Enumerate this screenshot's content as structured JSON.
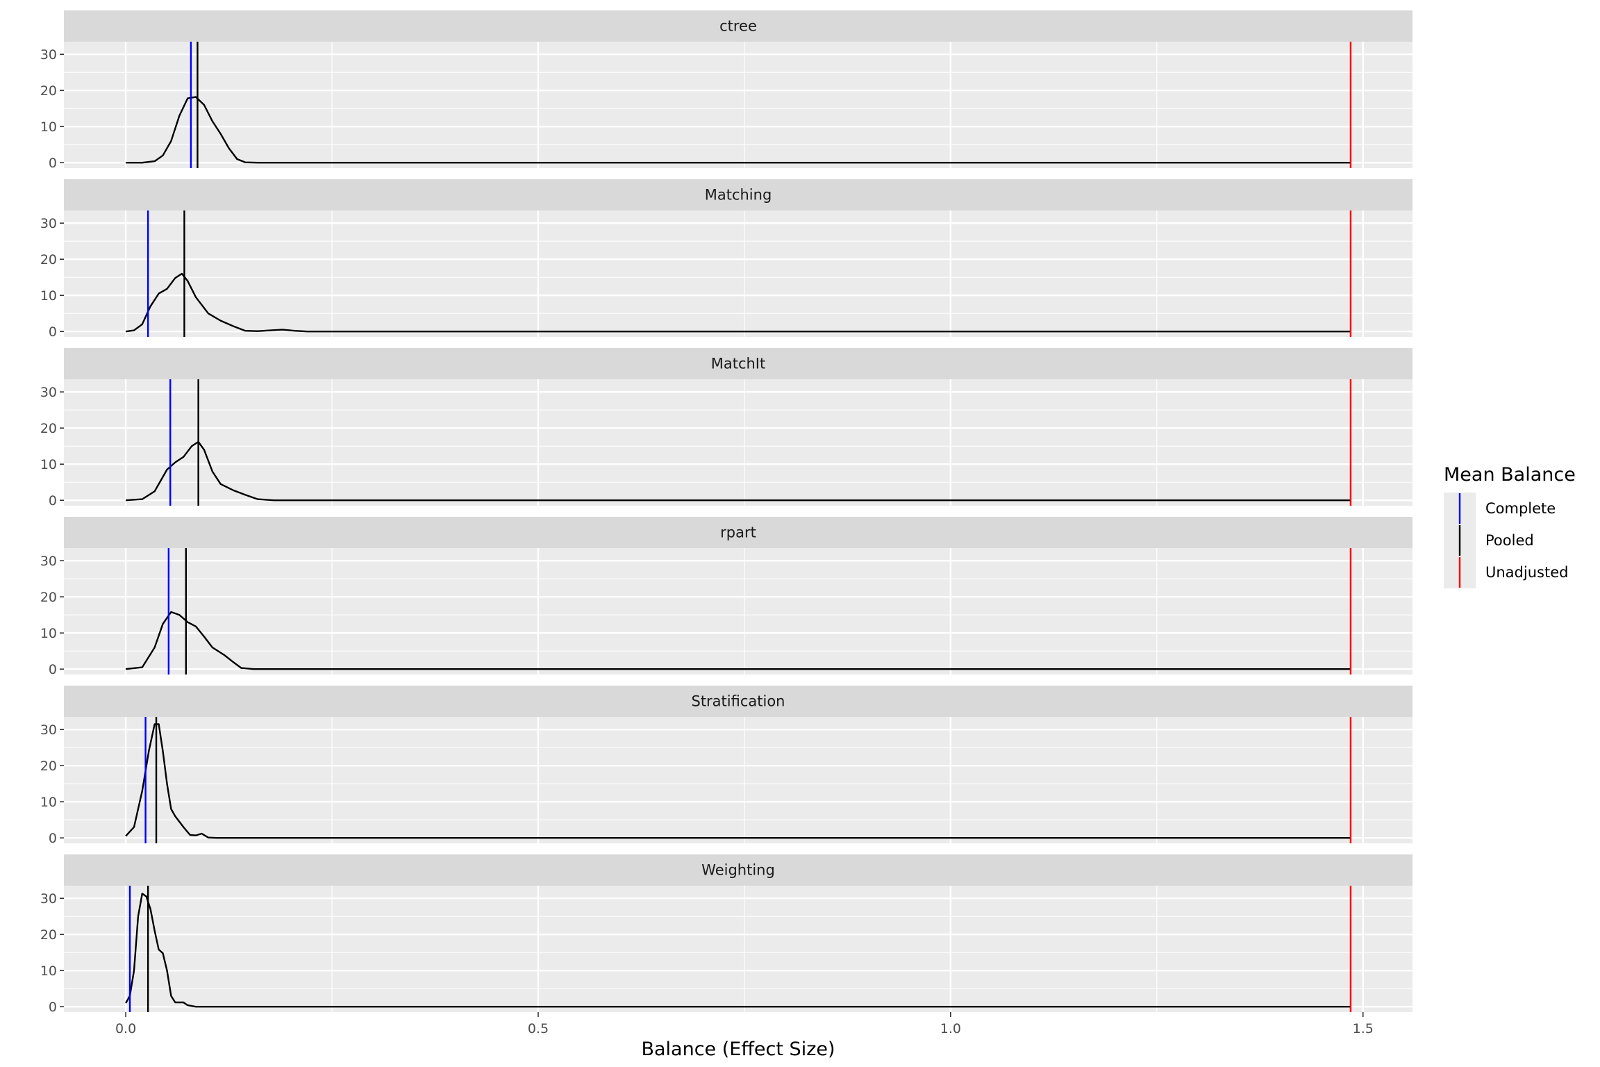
{
  "chart_data": {
    "type": "line",
    "subtype": "density-facets",
    "xlabel": "Balance (Effect Size)",
    "ylabel": "",
    "xlim": [
      -0.075,
      1.56
    ],
    "ylim": [
      -1.5,
      33.5
    ],
    "x_ticks": [
      0.0,
      0.5,
      1.0,
      1.5
    ],
    "x_tick_labels": [
      "0.0",
      "0.5",
      "1.0",
      "1.5"
    ],
    "y_ticks": [
      0,
      10,
      20,
      30
    ],
    "y_tick_labels": [
      "0",
      "10",
      "20",
      "30"
    ],
    "grid": true,
    "legend": {
      "title": "Mean Balance",
      "placement": "right",
      "entries": [
        {
          "label": "Complete",
          "color": "#0000ff"
        },
        {
          "label": "Pooled",
          "color": "#000000"
        },
        {
          "label": "Unadjusted",
          "color": "#ff0000"
        }
      ]
    },
    "colors": {
      "panel_bg": "#ebebeb",
      "strip_bg": "#d9d9d9",
      "grid": "#ffffff",
      "density": "#000000"
    },
    "facets": [
      {
        "name": "ctree",
        "complete": 0.079,
        "pooled": 0.087,
        "unadjusted": 1.485,
        "density": [
          [
            0.0,
            0
          ],
          [
            0.02,
            0
          ],
          [
            0.035,
            0.4
          ],
          [
            0.045,
            2
          ],
          [
            0.055,
            6
          ],
          [
            0.065,
            13
          ],
          [
            0.075,
            17.8
          ],
          [
            0.085,
            18.2
          ],
          [
            0.095,
            16
          ],
          [
            0.105,
            11.5
          ],
          [
            0.115,
            8
          ],
          [
            0.125,
            4
          ],
          [
            0.135,
            1
          ],
          [
            0.145,
            0.1
          ],
          [
            0.16,
            0
          ],
          [
            1.485,
            0
          ]
        ]
      },
      {
        "name": "Matching",
        "complete": 0.027,
        "pooled": 0.071,
        "unadjusted": 1.485,
        "density": [
          [
            0.0,
            0
          ],
          [
            0.01,
            0.3
          ],
          [
            0.02,
            2
          ],
          [
            0.03,
            7
          ],
          [
            0.04,
            10.5
          ],
          [
            0.05,
            11.8
          ],
          [
            0.06,
            14.8
          ],
          [
            0.068,
            16
          ],
          [
            0.075,
            14
          ],
          [
            0.085,
            9.5
          ],
          [
            0.1,
            5
          ],
          [
            0.115,
            3
          ],
          [
            0.13,
            1.5
          ],
          [
            0.145,
            0.2
          ],
          [
            0.16,
            0.1
          ],
          [
            0.175,
            0.3
          ],
          [
            0.19,
            0.5
          ],
          [
            0.205,
            0.2
          ],
          [
            0.22,
            0
          ],
          [
            1.485,
            0
          ]
        ]
      },
      {
        "name": "MatchIt",
        "complete": 0.054,
        "pooled": 0.088,
        "unadjusted": 1.485,
        "density": [
          [
            0.0,
            0
          ],
          [
            0.02,
            0.3
          ],
          [
            0.035,
            2.5
          ],
          [
            0.05,
            8.5
          ],
          [
            0.06,
            10.5
          ],
          [
            0.07,
            12
          ],
          [
            0.08,
            15
          ],
          [
            0.088,
            16.2
          ],
          [
            0.095,
            14
          ],
          [
            0.105,
            8
          ],
          [
            0.115,
            4.5
          ],
          [
            0.13,
            2.8
          ],
          [
            0.145,
            1.5
          ],
          [
            0.16,
            0.3
          ],
          [
            0.18,
            0
          ],
          [
            1.485,
            0
          ]
        ]
      },
      {
        "name": "rpart",
        "complete": 0.052,
        "pooled": 0.073,
        "unadjusted": 1.485,
        "density": [
          [
            0.0,
            0
          ],
          [
            0.02,
            0.5
          ],
          [
            0.035,
            6
          ],
          [
            0.045,
            12.5
          ],
          [
            0.055,
            15.8
          ],
          [
            0.065,
            15
          ],
          [
            0.075,
            13
          ],
          [
            0.085,
            11.8
          ],
          [
            0.095,
            9
          ],
          [
            0.105,
            6
          ],
          [
            0.12,
            3.8
          ],
          [
            0.13,
            2
          ],
          [
            0.14,
            0.3
          ],
          [
            0.155,
            0
          ],
          [
            1.485,
            0
          ]
        ]
      },
      {
        "name": "Stratification",
        "complete": 0.024,
        "pooled": 0.037,
        "unadjusted": 1.485,
        "density": [
          [
            0.0,
            0.5
          ],
          [
            0.01,
            3
          ],
          [
            0.02,
            13
          ],
          [
            0.028,
            24
          ],
          [
            0.035,
            31.5
          ],
          [
            0.04,
            31.5
          ],
          [
            0.045,
            24
          ],
          [
            0.05,
            15
          ],
          [
            0.055,
            8
          ],
          [
            0.06,
            6
          ],
          [
            0.07,
            3
          ],
          [
            0.078,
            0.8
          ],
          [
            0.085,
            0.7
          ],
          [
            0.092,
            1.2
          ],
          [
            0.1,
            0.1
          ],
          [
            0.11,
            0
          ],
          [
            1.485,
            0
          ]
        ]
      },
      {
        "name": "Weighting",
        "complete": 0.005,
        "pooled": 0.027,
        "unadjusted": 1.485,
        "density": [
          [
            0.0,
            1
          ],
          [
            0.005,
            3
          ],
          [
            0.01,
            10
          ],
          [
            0.015,
            25
          ],
          [
            0.02,
            31.3
          ],
          [
            0.025,
            30.5
          ],
          [
            0.03,
            27
          ],
          [
            0.035,
            21
          ],
          [
            0.04,
            15.8
          ],
          [
            0.045,
            14.8
          ],
          [
            0.05,
            10
          ],
          [
            0.055,
            3
          ],
          [
            0.06,
            1.2
          ],
          [
            0.07,
            1.2
          ],
          [
            0.075,
            0.4
          ],
          [
            0.085,
            0
          ],
          [
            1.485,
            0
          ]
        ]
      }
    ]
  }
}
